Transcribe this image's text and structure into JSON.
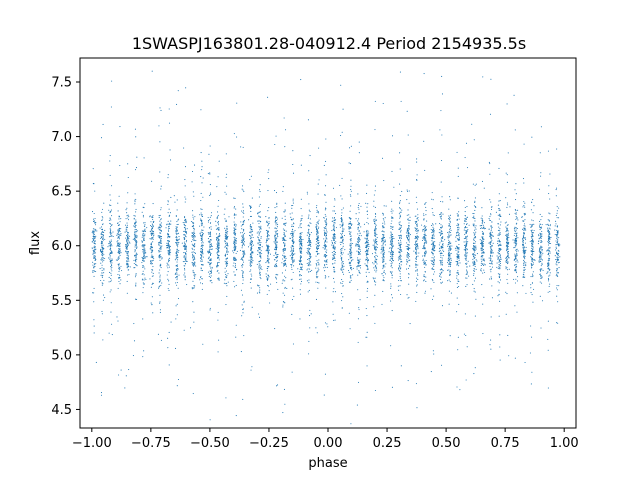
{
  "chart_data": {
    "type": "scatter",
    "title": "1SWASPJ163801.28-040912.4 Period 2154935.5s",
    "xlabel": "phase",
    "ylabel": "flux",
    "xlim": [
      -1.05,
      1.05
    ],
    "ylim": [
      4.33,
      7.72
    ],
    "xticks": [
      -1.0,
      -0.75,
      -0.5,
      -0.25,
      0.0,
      0.25,
      0.5,
      0.75,
      1.0
    ],
    "xtick_labels": [
      "−1.00",
      "−0.75",
      "−0.50",
      "−0.25",
      "0.00",
      "0.25",
      "0.50",
      "0.75",
      "1.00"
    ],
    "yticks": [
      4.5,
      5.0,
      5.5,
      6.0,
      6.5,
      7.0,
      7.5
    ],
    "ytick_labels": [
      "4.5",
      "5.0",
      "5.5",
      "6.0",
      "6.5",
      "7.0",
      "7.5"
    ],
    "grid": false,
    "marker_color": "#1f77b4",
    "series": [
      {
        "x_range": [
          -1.0,
          1.0
        ],
        "vertical_clusters_phase": [
          -0.99,
          -0.955,
          -0.92,
          -0.885,
          -0.85,
          -0.815,
          -0.78,
          -0.745,
          -0.71,
          -0.675,
          -0.64,
          -0.605,
          -0.57,
          -0.535,
          -0.5,
          -0.465,
          -0.43,
          -0.395,
          -0.36,
          -0.325,
          -0.29,
          -0.255,
          -0.22,
          -0.185,
          -0.15,
          -0.115,
          -0.08,
          -0.045,
          -0.01,
          0.025,
          0.06,
          0.095,
          0.13,
          0.165,
          0.2,
          0.235,
          0.27,
          0.305,
          0.34,
          0.375,
          0.41,
          0.445,
          0.48,
          0.515,
          0.55,
          0.585,
          0.62,
          0.655,
          0.69,
          0.725,
          0.76,
          0.795,
          0.83,
          0.865,
          0.9,
          0.935,
          0.97
        ],
        "core_flux_range": [
          5.6,
          6.4
        ],
        "outlier_flux_range": [
          4.5,
          7.6
        ],
        "median_flux": 6.0
      }
    ]
  }
}
